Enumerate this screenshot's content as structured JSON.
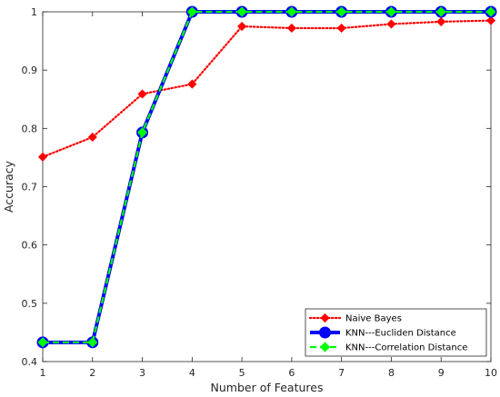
{
  "chart_data": {
    "type": "line",
    "title": "",
    "xlabel": "Number of Features",
    "ylabel": "Accuracy",
    "xlim": [
      1,
      10
    ],
    "ylim": [
      0.4,
      1.0
    ],
    "xticks": [
      1,
      2,
      3,
      4,
      5,
      6,
      7,
      8,
      9,
      10
    ],
    "yticks": [
      0.4,
      0.5,
      0.6,
      0.7,
      0.8,
      0.9,
      1
    ],
    "x": [
      1,
      2,
      3,
      4,
      5,
      6,
      7,
      8,
      9,
      10
    ],
    "grid": false,
    "legend_location": "bottom-right",
    "series": [
      {
        "name": "Naive Bayes",
        "values": [
          0.751,
          0.785,
          0.859,
          0.876,
          0.975,
          0.972,
          0.972,
          0.979,
          0.983,
          0.985
        ],
        "color": "#ff0000",
        "line_style": "dotted",
        "marker": "diamond"
      },
      {
        "name": "KNN---Eucliden Distance",
        "values": [
          0.433,
          0.433,
          0.793,
          1.0,
          1.0,
          1.0,
          1.0,
          1.0,
          1.0,
          1.0
        ],
        "color": "#0000ff",
        "line_style": "solid",
        "marker": "circle"
      },
      {
        "name": "KNN---Correlation Distance",
        "values": [
          0.433,
          0.433,
          0.793,
          1.0,
          1.0,
          1.0,
          1.0,
          1.0,
          1.0,
          1.0
        ],
        "color": "#00ff00",
        "line_style": "dashed",
        "marker": "diamond"
      }
    ]
  }
}
